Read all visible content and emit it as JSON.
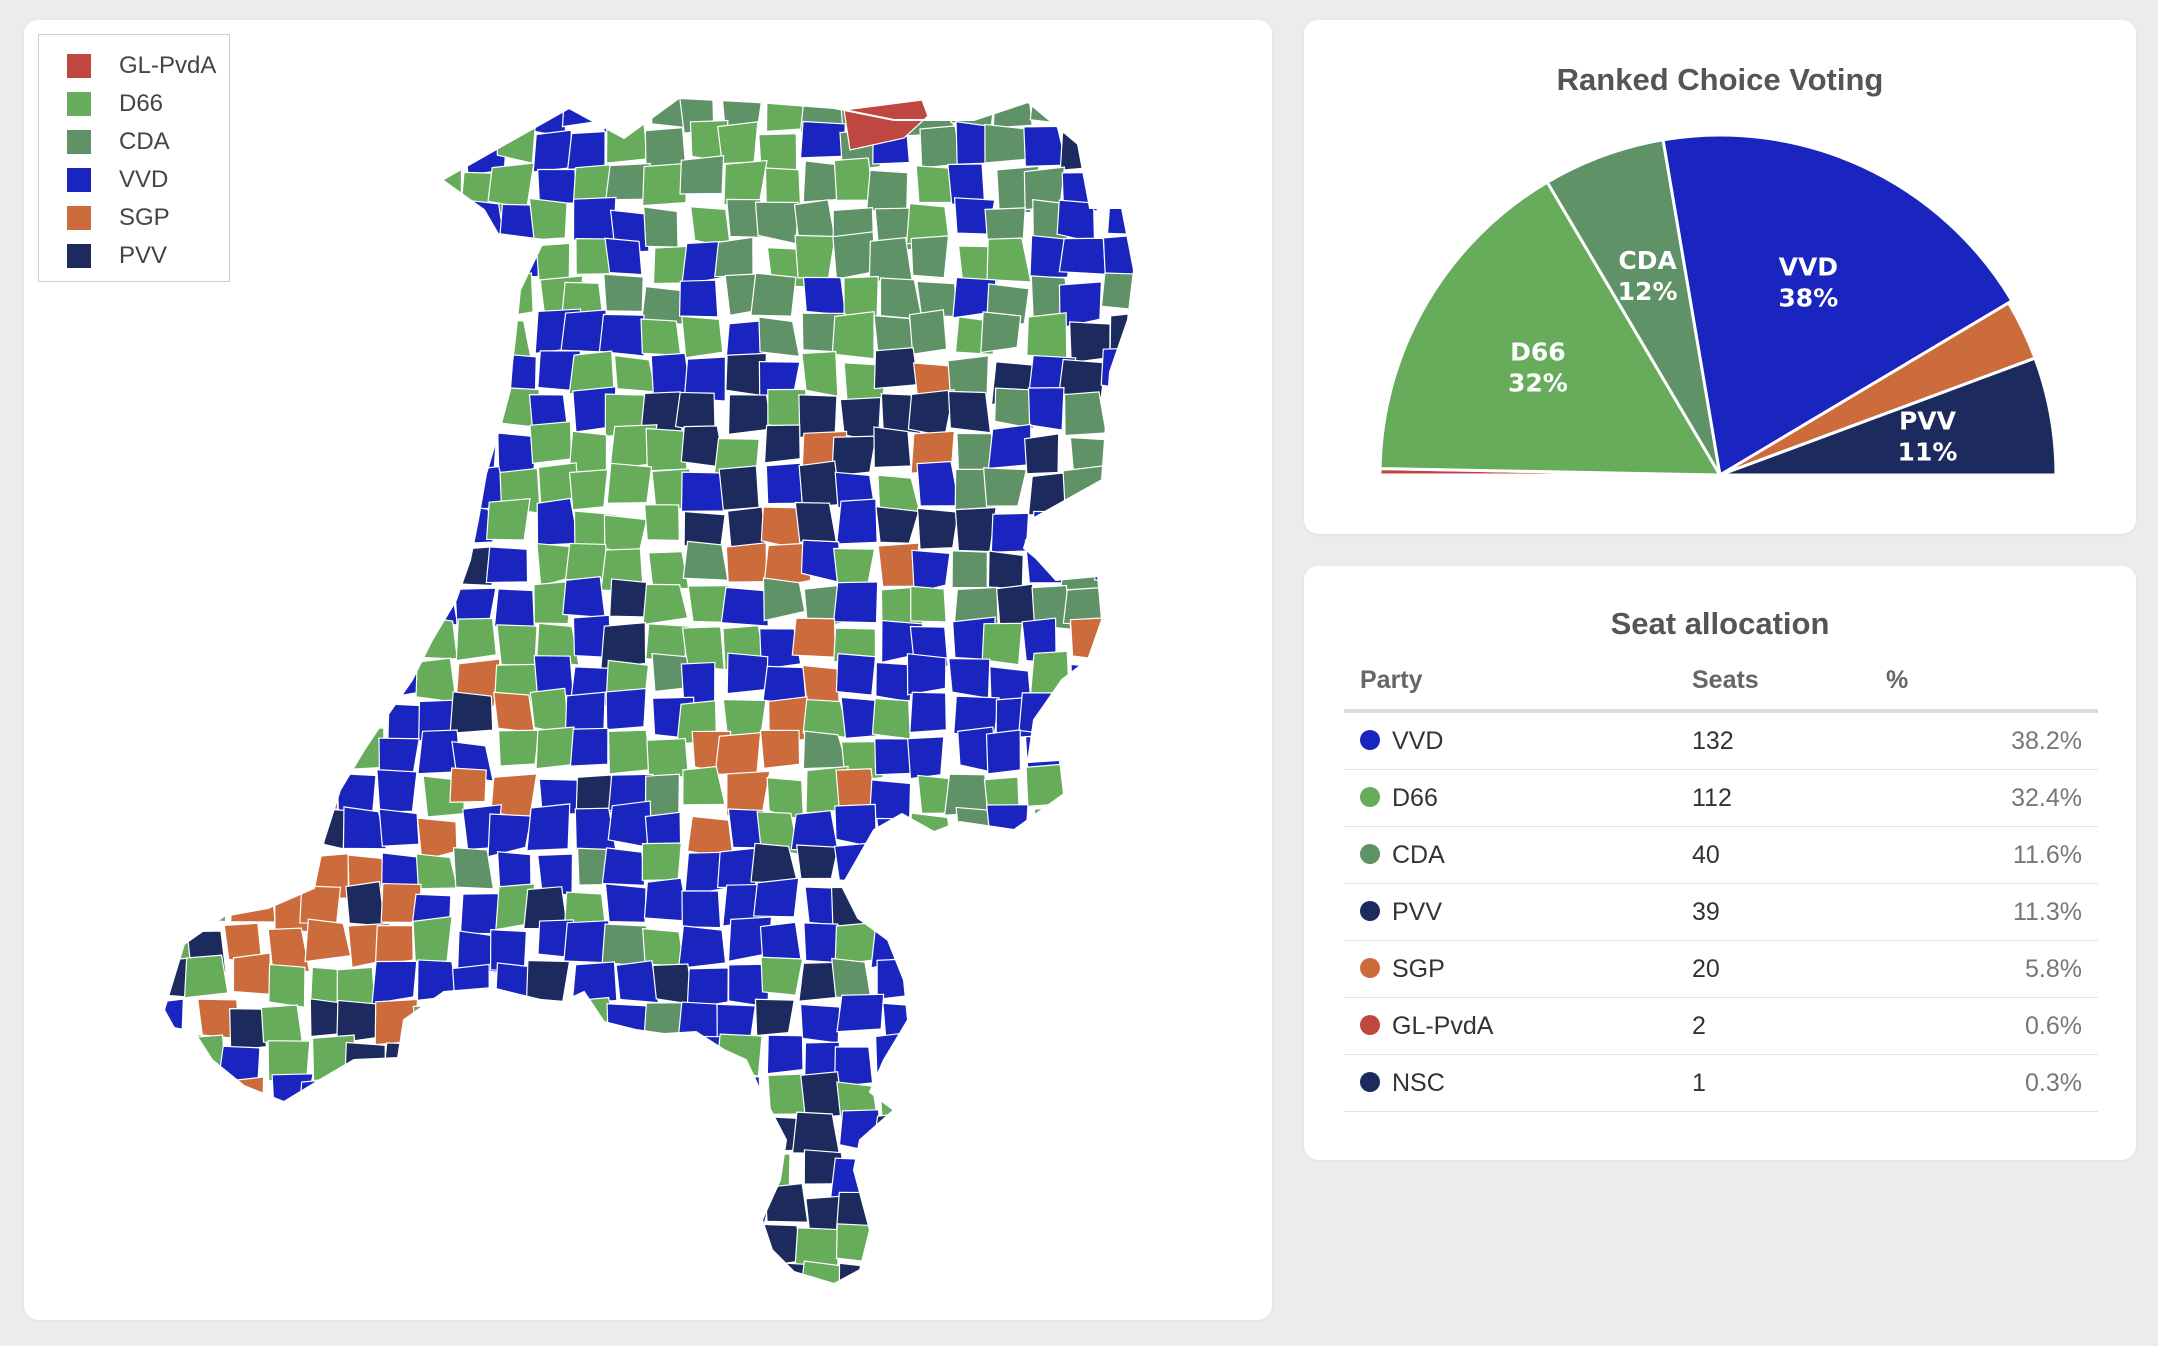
{
  "colors": {
    "GL-PvdA": "#c0473f",
    "D66": "#66ac5b",
    "CDA": "#5f9367",
    "VVD": "#1925be",
    "SGP": "#cc6c3c",
    "PVV": "#1c2a5e",
    "NSC": "#1c2a5e"
  },
  "map": {
    "legend": [
      {
        "label": "GL-PvdA",
        "color": "#c0473f"
      },
      {
        "label": "D66",
        "color": "#66ac5b"
      },
      {
        "label": "CDA",
        "color": "#5f9367"
      },
      {
        "label": "VVD",
        "color": "#1925be"
      },
      {
        "label": "SGP",
        "color": "#cc6c3c"
      },
      {
        "label": "PVV",
        "color": "#1c2a5e"
      }
    ]
  },
  "chart_data": [
    {
      "type": "pie",
      "variant": "semicircle",
      "title": "Ranked Choice Voting",
      "slices": [
        {
          "label": "GL-PvdA",
          "value": 0.6,
          "color": "#c0473f",
          "show_label": false
        },
        {
          "label": "D66",
          "value": 32.4,
          "color": "#66ac5b",
          "show_label": true,
          "text": "32%"
        },
        {
          "label": "CDA",
          "value": 11.6,
          "color": "#5f9367",
          "show_label": true,
          "text": "12%"
        },
        {
          "label": "VVD",
          "value": 38.2,
          "color": "#1925be",
          "show_label": true,
          "text": "38%"
        },
        {
          "label": "SGP",
          "value": 5.8,
          "color": "#cc6c3c",
          "show_label": false
        },
        {
          "label": "PVV",
          "value": 11.3,
          "color": "#1c2a5e",
          "show_label": true,
          "text": "11%"
        }
      ]
    },
    {
      "type": "table",
      "title": "Seat allocation",
      "columns": [
        "Party",
        "Seats",
        "%"
      ],
      "rows": [
        {
          "party": "VVD",
          "seats": "132",
          "pct": "38.2%",
          "color": "#1925be"
        },
        {
          "party": "D66",
          "seats": "112",
          "pct": "32.4%",
          "color": "#66ac5b"
        },
        {
          "party": "CDA",
          "seats": "40",
          "pct": "11.6%",
          "color": "#5f9367"
        },
        {
          "party": "PVV",
          "seats": "39",
          "pct": "11.3%",
          "color": "#1c2a5e"
        },
        {
          "party": "SGP",
          "seats": "20",
          "pct": "5.8%",
          "color": "#cc6c3c"
        },
        {
          "party": "GL-PvdA",
          "seats": "2",
          "pct": "0.6%",
          "color": "#c0473f"
        },
        {
          "party": "NSC",
          "seats": "1",
          "pct": "0.3%",
          "color": "#1c2a5e"
        }
      ]
    }
  ]
}
